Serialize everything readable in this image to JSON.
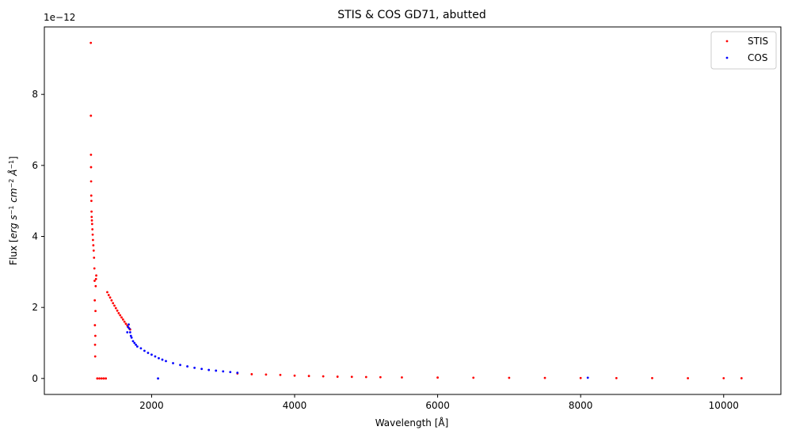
{
  "chart_data": {
    "type": "scatter",
    "title": "STIS & COS GD71, abutted",
    "xlabel": "Wavelength [Å]",
    "ylabel_parts": [
      "Flux [",
      "erg s",
      "−1",
      " cm",
      "−2",
      " Å",
      "−1",
      "]"
    ],
    "offset_text": "1e−12",
    "xlim": [
      500,
      10800
    ],
    "ylim": [
      -0.45,
      9.9
    ],
    "y_scale_note": "values in units of 1e-12",
    "xticks": [
      2000,
      4000,
      6000,
      8000,
      10000
    ],
    "xtick_labels": [
      "2000",
      "4000",
      "6000",
      "8000",
      "10000"
    ],
    "yticks": [
      0,
      2,
      4,
      6,
      8
    ],
    "ytick_labels": [
      "0",
      "2",
      "4",
      "6",
      "8"
    ],
    "legend": {
      "placement": "top-right",
      "entries": [
        "STIS",
        "COS"
      ]
    },
    "series": [
      {
        "name": "STIS",
        "color": "#ff0000",
        "points": [
          [
            1150,
            9.45
          ],
          [
            1151,
            7.4
          ],
          [
            1152,
            6.3
          ],
          [
            1153,
            5.95
          ],
          [
            1154,
            5.55
          ],
          [
            1156,
            5.15
          ],
          [
            1158,
            5.0
          ],
          [
            1160,
            4.7
          ],
          [
            1162,
            4.55
          ],
          [
            1165,
            4.45
          ],
          [
            1168,
            4.35
          ],
          [
            1172,
            4.2
          ],
          [
            1176,
            4.05
          ],
          [
            1180,
            3.9
          ],
          [
            1185,
            3.75
          ],
          [
            1190,
            3.6
          ],
          [
            1195,
            3.4
          ],
          [
            1200,
            3.1
          ],
          [
            1203,
            2.75
          ],
          [
            1205,
            2.2
          ],
          [
            1207,
            1.5
          ],
          [
            1209,
            0.95
          ],
          [
            1211,
            0.62
          ],
          [
            1213,
            1.2
          ],
          [
            1215,
            1.9
          ],
          [
            1218,
            2.6
          ],
          [
            1222,
            2.8
          ],
          [
            1226,
            2.9
          ],
          [
            1240,
            0.0
          ],
          [
            1270,
            0.0
          ],
          [
            1300,
            0.0
          ],
          [
            1330,
            0.0
          ],
          [
            1360,
            0.0
          ],
          [
            1380,
            2.43
          ],
          [
            1400,
            2.35
          ],
          [
            1420,
            2.28
          ],
          [
            1440,
            2.2
          ],
          [
            1460,
            2.12
          ],
          [
            1480,
            2.05
          ],
          [
            1500,
            1.98
          ],
          [
            1520,
            1.91
          ],
          [
            1540,
            1.84
          ],
          [
            1560,
            1.78
          ],
          [
            1580,
            1.72
          ],
          [
            1600,
            1.66
          ],
          [
            1620,
            1.6
          ],
          [
            1640,
            1.54
          ],
          [
            1660,
            1.49
          ],
          [
            1680,
            1.43
          ],
          [
            1700,
            1.38
          ],
          [
            3200,
            0.14
          ],
          [
            3400,
            0.12
          ],
          [
            3600,
            0.11
          ],
          [
            3800,
            0.1
          ],
          [
            4000,
            0.08
          ],
          [
            4200,
            0.07
          ],
          [
            4400,
            0.06
          ],
          [
            4600,
            0.05
          ],
          [
            4800,
            0.045
          ],
          [
            5000,
            0.04
          ],
          [
            5200,
            0.035
          ],
          [
            5500,
            0.03
          ],
          [
            6000,
            0.025
          ],
          [
            6500,
            0.02
          ],
          [
            7000,
            0.018
          ],
          [
            7500,
            0.015
          ],
          [
            8000,
            0.013
          ],
          [
            8500,
            0.01
          ],
          [
            9000,
            0.009
          ],
          [
            9500,
            0.008
          ],
          [
            10000,
            0.007
          ],
          [
            10250,
            0.006
          ]
        ]
      },
      {
        "name": "COS",
        "color": "#0000ff",
        "points": [
          [
            1660,
            1.3
          ],
          [
            1670,
            1.45
          ],
          [
            1680,
            1.52
          ],
          [
            1690,
            1.4
          ],
          [
            1700,
            1.3
          ],
          [
            1710,
            1.2
          ],
          [
            1720,
            1.15
          ],
          [
            1740,
            1.05
          ],
          [
            1760,
            1.0
          ],
          [
            1780,
            0.95
          ],
          [
            1800,
            0.9
          ],
          [
            1850,
            0.85
          ],
          [
            1900,
            0.78
          ],
          [
            1950,
            0.72
          ],
          [
            2000,
            0.67
          ],
          [
            2050,
            0.62
          ],
          [
            2100,
            0.57
          ],
          [
            2150,
            0.53
          ],
          [
            2200,
            0.49
          ],
          [
            2300,
            0.43
          ],
          [
            2400,
            0.38
          ],
          [
            2500,
            0.34
          ],
          [
            2600,
            0.3
          ],
          [
            2700,
            0.27
          ],
          [
            2800,
            0.24
          ],
          [
            2900,
            0.22
          ],
          [
            3000,
            0.2
          ],
          [
            3100,
            0.18
          ],
          [
            3200,
            0.16
          ],
          [
            2090,
            0.0
          ],
          [
            8100,
            0.02
          ]
        ]
      }
    ]
  }
}
